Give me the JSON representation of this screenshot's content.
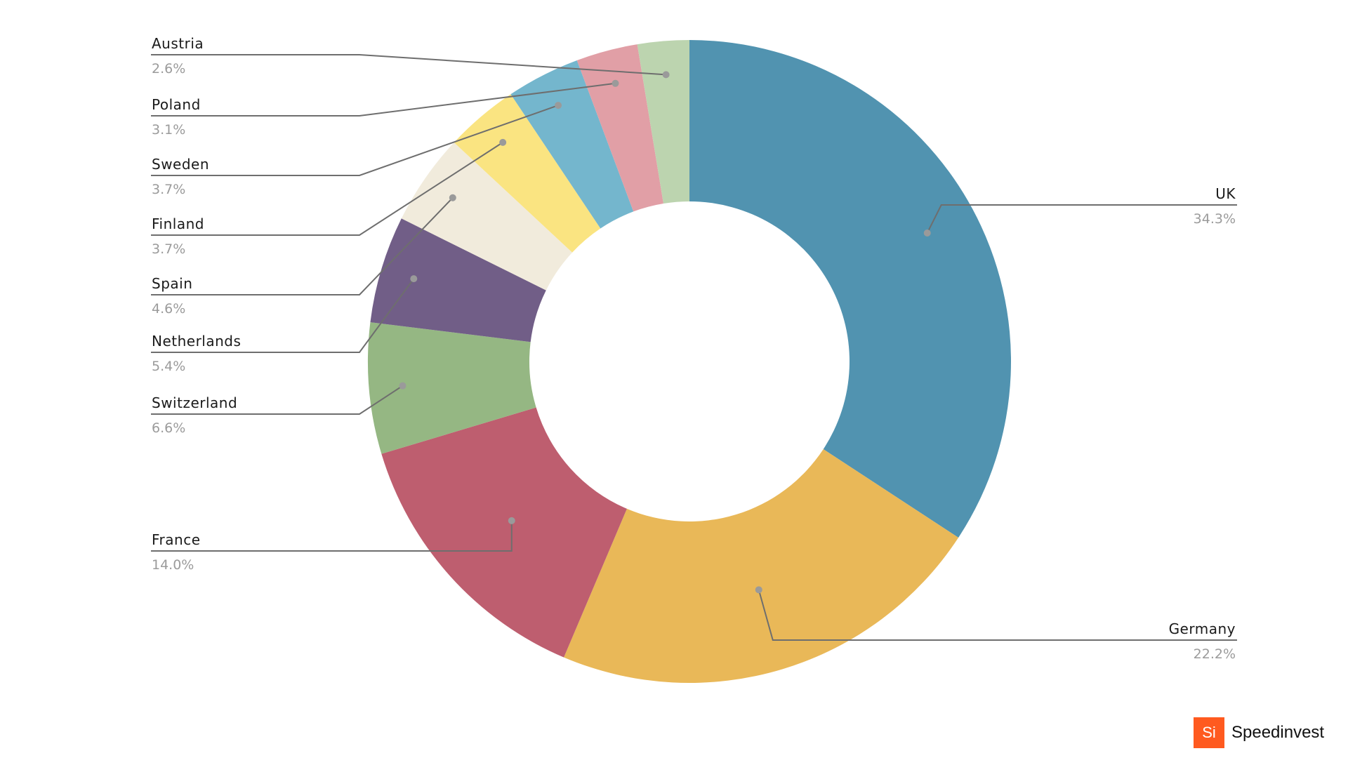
{
  "chart_data": {
    "type": "pie",
    "donut": true,
    "categories": [
      "UK",
      "Germany",
      "France",
      "Switzerland",
      "Netherlands",
      "Spain",
      "Finland",
      "Sweden",
      "Poland",
      "Austria"
    ],
    "values": [
      34.3,
      22.2,
      14.0,
      6.6,
      5.4,
      4.6,
      3.7,
      3.7,
      3.1,
      2.6
    ],
    "value_labels": [
      "34.3%",
      "22.2%",
      "14.0%",
      "6.6%",
      "5.4%",
      "4.6%",
      "3.7%",
      "3.7%",
      "3.1%",
      "2.6%"
    ],
    "colors": [
      "#5193b0",
      "#e9b858",
      "#be5e6f",
      "#95b783",
      "#715e87",
      "#f1ebdc",
      "#fae481",
      "#74b6cd",
      "#e19fa6",
      "#bcd4af"
    ],
    "legend": "leader-line labels around chart",
    "title": ""
  },
  "brand": {
    "mark": "Si",
    "name": "Speedinvest",
    "color": "#ff5a1f"
  }
}
